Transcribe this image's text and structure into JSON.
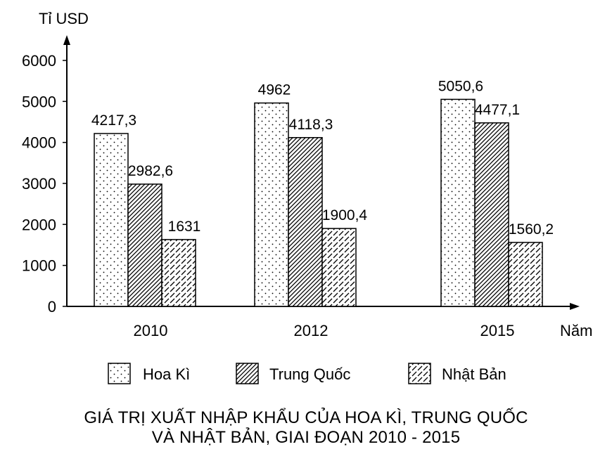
{
  "chart_data": {
    "type": "bar",
    "ylabel": "Tỉ USD",
    "xlabel": "Năm",
    "categories": [
      "2010",
      "2012",
      "2015"
    ],
    "ylim": [
      0,
      6000
    ],
    "yticks": [
      0,
      1000,
      2000,
      3000,
      4000,
      5000,
      6000
    ],
    "series": [
      {
        "name": "Hoa Kì",
        "pattern": "dots",
        "values": [
          4217.3,
          4962,
          5050.6
        ],
        "labels": [
          "4217,3",
          "4962",
          "5050,6"
        ]
      },
      {
        "name": "Trung Quốc",
        "pattern": "dense-diagonal",
        "values": [
          2982.6,
          4118.3,
          4477.1
        ],
        "labels": [
          "2982,6",
          "4118,3",
          "4477,1"
        ]
      },
      {
        "name": "Nhật Bản",
        "pattern": "sparse-diagonal",
        "values": [
          1631,
          1900.4,
          1560.2
        ],
        "labels": [
          "1631",
          "1900,4",
          "1560,2"
        ]
      }
    ],
    "legend_position": "bottom",
    "grid": false,
    "title_lines": [
      "GIÁ TRỊ XUẤT NHẬP KHẨU CỦA HOA KÌ, TRUNG QUỐC",
      "VÀ NHẬT BẢN, GIAI ĐOẠN 2010 - 2015"
    ]
  }
}
